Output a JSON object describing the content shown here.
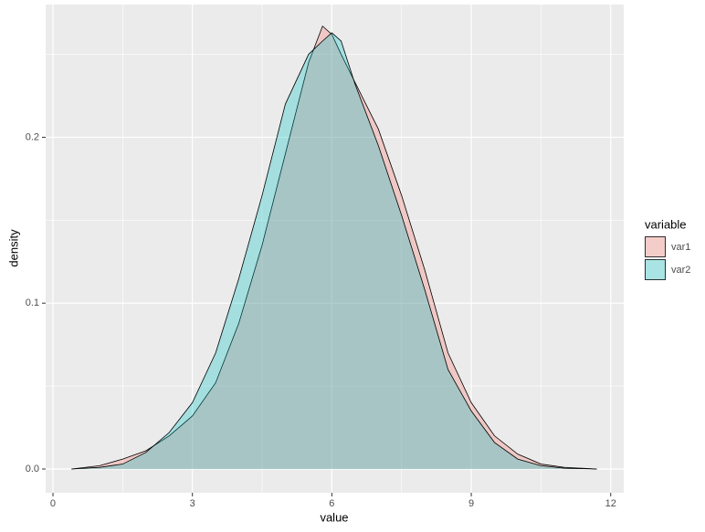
{
  "chart_data": {
    "type": "area",
    "x_label": "value",
    "y_label": "density",
    "x": [
      0.4,
      1,
      1.5,
      2,
      2.5,
      3,
      3.5,
      4,
      4.5,
      5,
      5.5,
      5.8,
      6,
      6.2,
      6.5,
      7,
      7.5,
      8,
      8.5,
      9,
      9.5,
      10,
      10.5,
      11,
      11.7
    ],
    "series": [
      {
        "name": "var1",
        "color": "#F8766D",
        "values": [
          0,
          0.002,
          0.006,
          0.011,
          0.02,
          0.032,
          0.052,
          0.088,
          0.135,
          0.19,
          0.245,
          0.267,
          0.262,
          0.25,
          0.233,
          0.205,
          0.165,
          0.12,
          0.07,
          0.04,
          0.02,
          0.009,
          0.003,
          0.001,
          0
        ]
      },
      {
        "name": "var2",
        "color": "#00BFC4",
        "values": [
          0,
          0.001,
          0.003,
          0.01,
          0.022,
          0.04,
          0.07,
          0.115,
          0.165,
          0.22,
          0.25,
          0.258,
          0.263,
          0.258,
          0.232,
          0.195,
          0.153,
          0.108,
          0.06,
          0.035,
          0.016,
          0.006,
          0.002,
          0.0005,
          0
        ]
      }
    ],
    "legend_title": "variable",
    "legend": "right",
    "xlim": [
      -0.157,
      12.28
    ],
    "xticks": [
      0,
      3,
      6,
      9,
      12
    ],
    "ylim": [
      -0.0143,
      0.28
    ],
    "yticks": [
      {
        "value": 0,
        "label": "0.0"
      },
      {
        "value": 0.1,
        "label": "0.1"
      },
      {
        "value": 0.2,
        "label": "0.2"
      }
    ],
    "grid": true
  }
}
